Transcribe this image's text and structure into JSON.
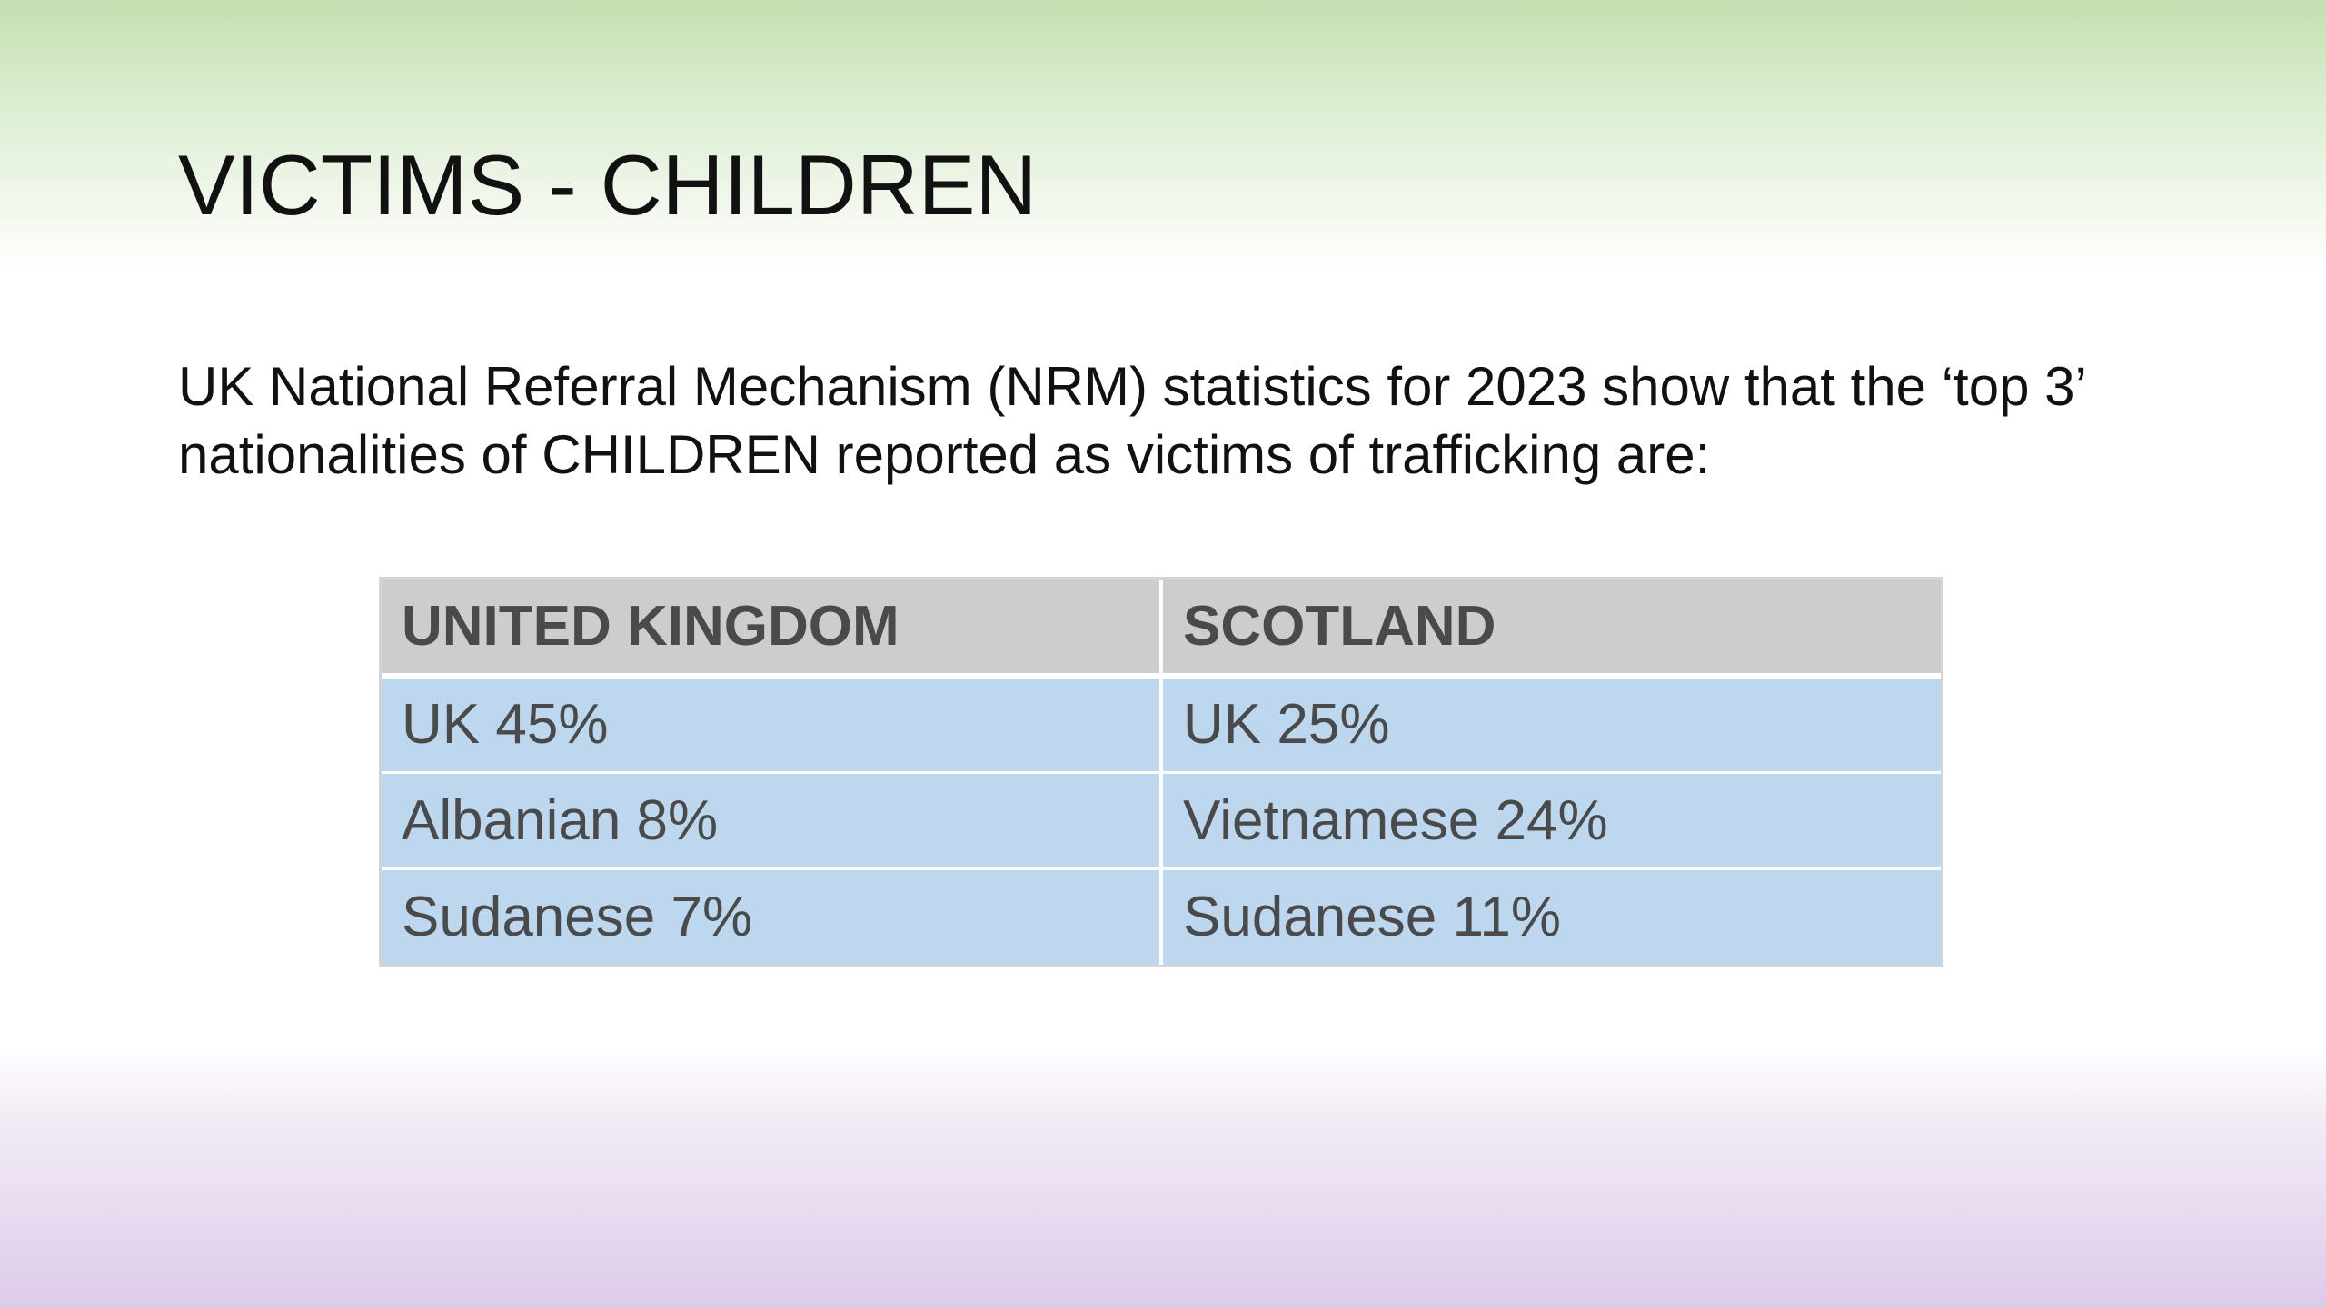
{
  "slide": {
    "title": "VICTIMS - CHILDREN",
    "body": "UK National Referral Mechanism (NRM) statistics for 2023 show that the ‘top 3’ nationalities of CHILDREN reported as victims of trafficking are:"
  },
  "table": {
    "headers": [
      "UNITED KINGDOM",
      "SCOTLAND"
    ],
    "rows": [
      [
        "UK 45%",
        "UK 25%"
      ],
      [
        "Albanian 8%",
        "Vietnamese 24%"
      ],
      [
        "Sudanese 7%",
        "Sudanese 11%"
      ]
    ]
  },
  "colors": {
    "header_fill": "#cfcccd",
    "cell_fill": "#bdd7ee",
    "top_gradient": "#c4e0b2",
    "bottom_gradient": "#dccbea"
  }
}
